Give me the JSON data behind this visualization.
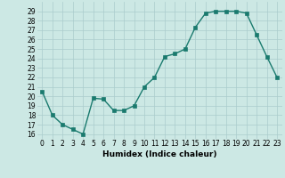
{
  "x": [
    0,
    1,
    2,
    3,
    4,
    5,
    6,
    7,
    8,
    9,
    10,
    11,
    12,
    13,
    14,
    15,
    16,
    17,
    18,
    19,
    20,
    21,
    22,
    23
  ],
  "y": [
    20.5,
    18.0,
    17.0,
    16.5,
    16.0,
    19.8,
    19.7,
    18.5,
    18.5,
    19.0,
    21.0,
    22.0,
    24.2,
    24.5,
    25.0,
    27.3,
    28.8,
    29.0,
    29.0,
    29.0,
    28.8,
    26.5,
    24.2,
    22.0
  ],
  "line_color": "#1a7a6e",
  "marker": "s",
  "markersize": 2.5,
  "linewidth": 1.0,
  "background_color": "#cce8e4",
  "grid_color": "#aacccc",
  "xlabel": "Humidex (Indice chaleur)",
  "ylabel": "",
  "xlim": [
    -0.5,
    23.5
  ],
  "ylim": [
    15.5,
    30.0
  ],
  "yticks": [
    16,
    17,
    18,
    19,
    20,
    21,
    22,
    23,
    24,
    25,
    26,
    27,
    28,
    29
  ],
  "xticks": [
    0,
    1,
    2,
    3,
    4,
    5,
    6,
    7,
    8,
    9,
    10,
    11,
    12,
    13,
    14,
    15,
    16,
    17,
    18,
    19,
    20,
    21,
    22,
    23
  ],
  "xlabel_fontsize": 6.5,
  "tick_fontsize": 5.5
}
